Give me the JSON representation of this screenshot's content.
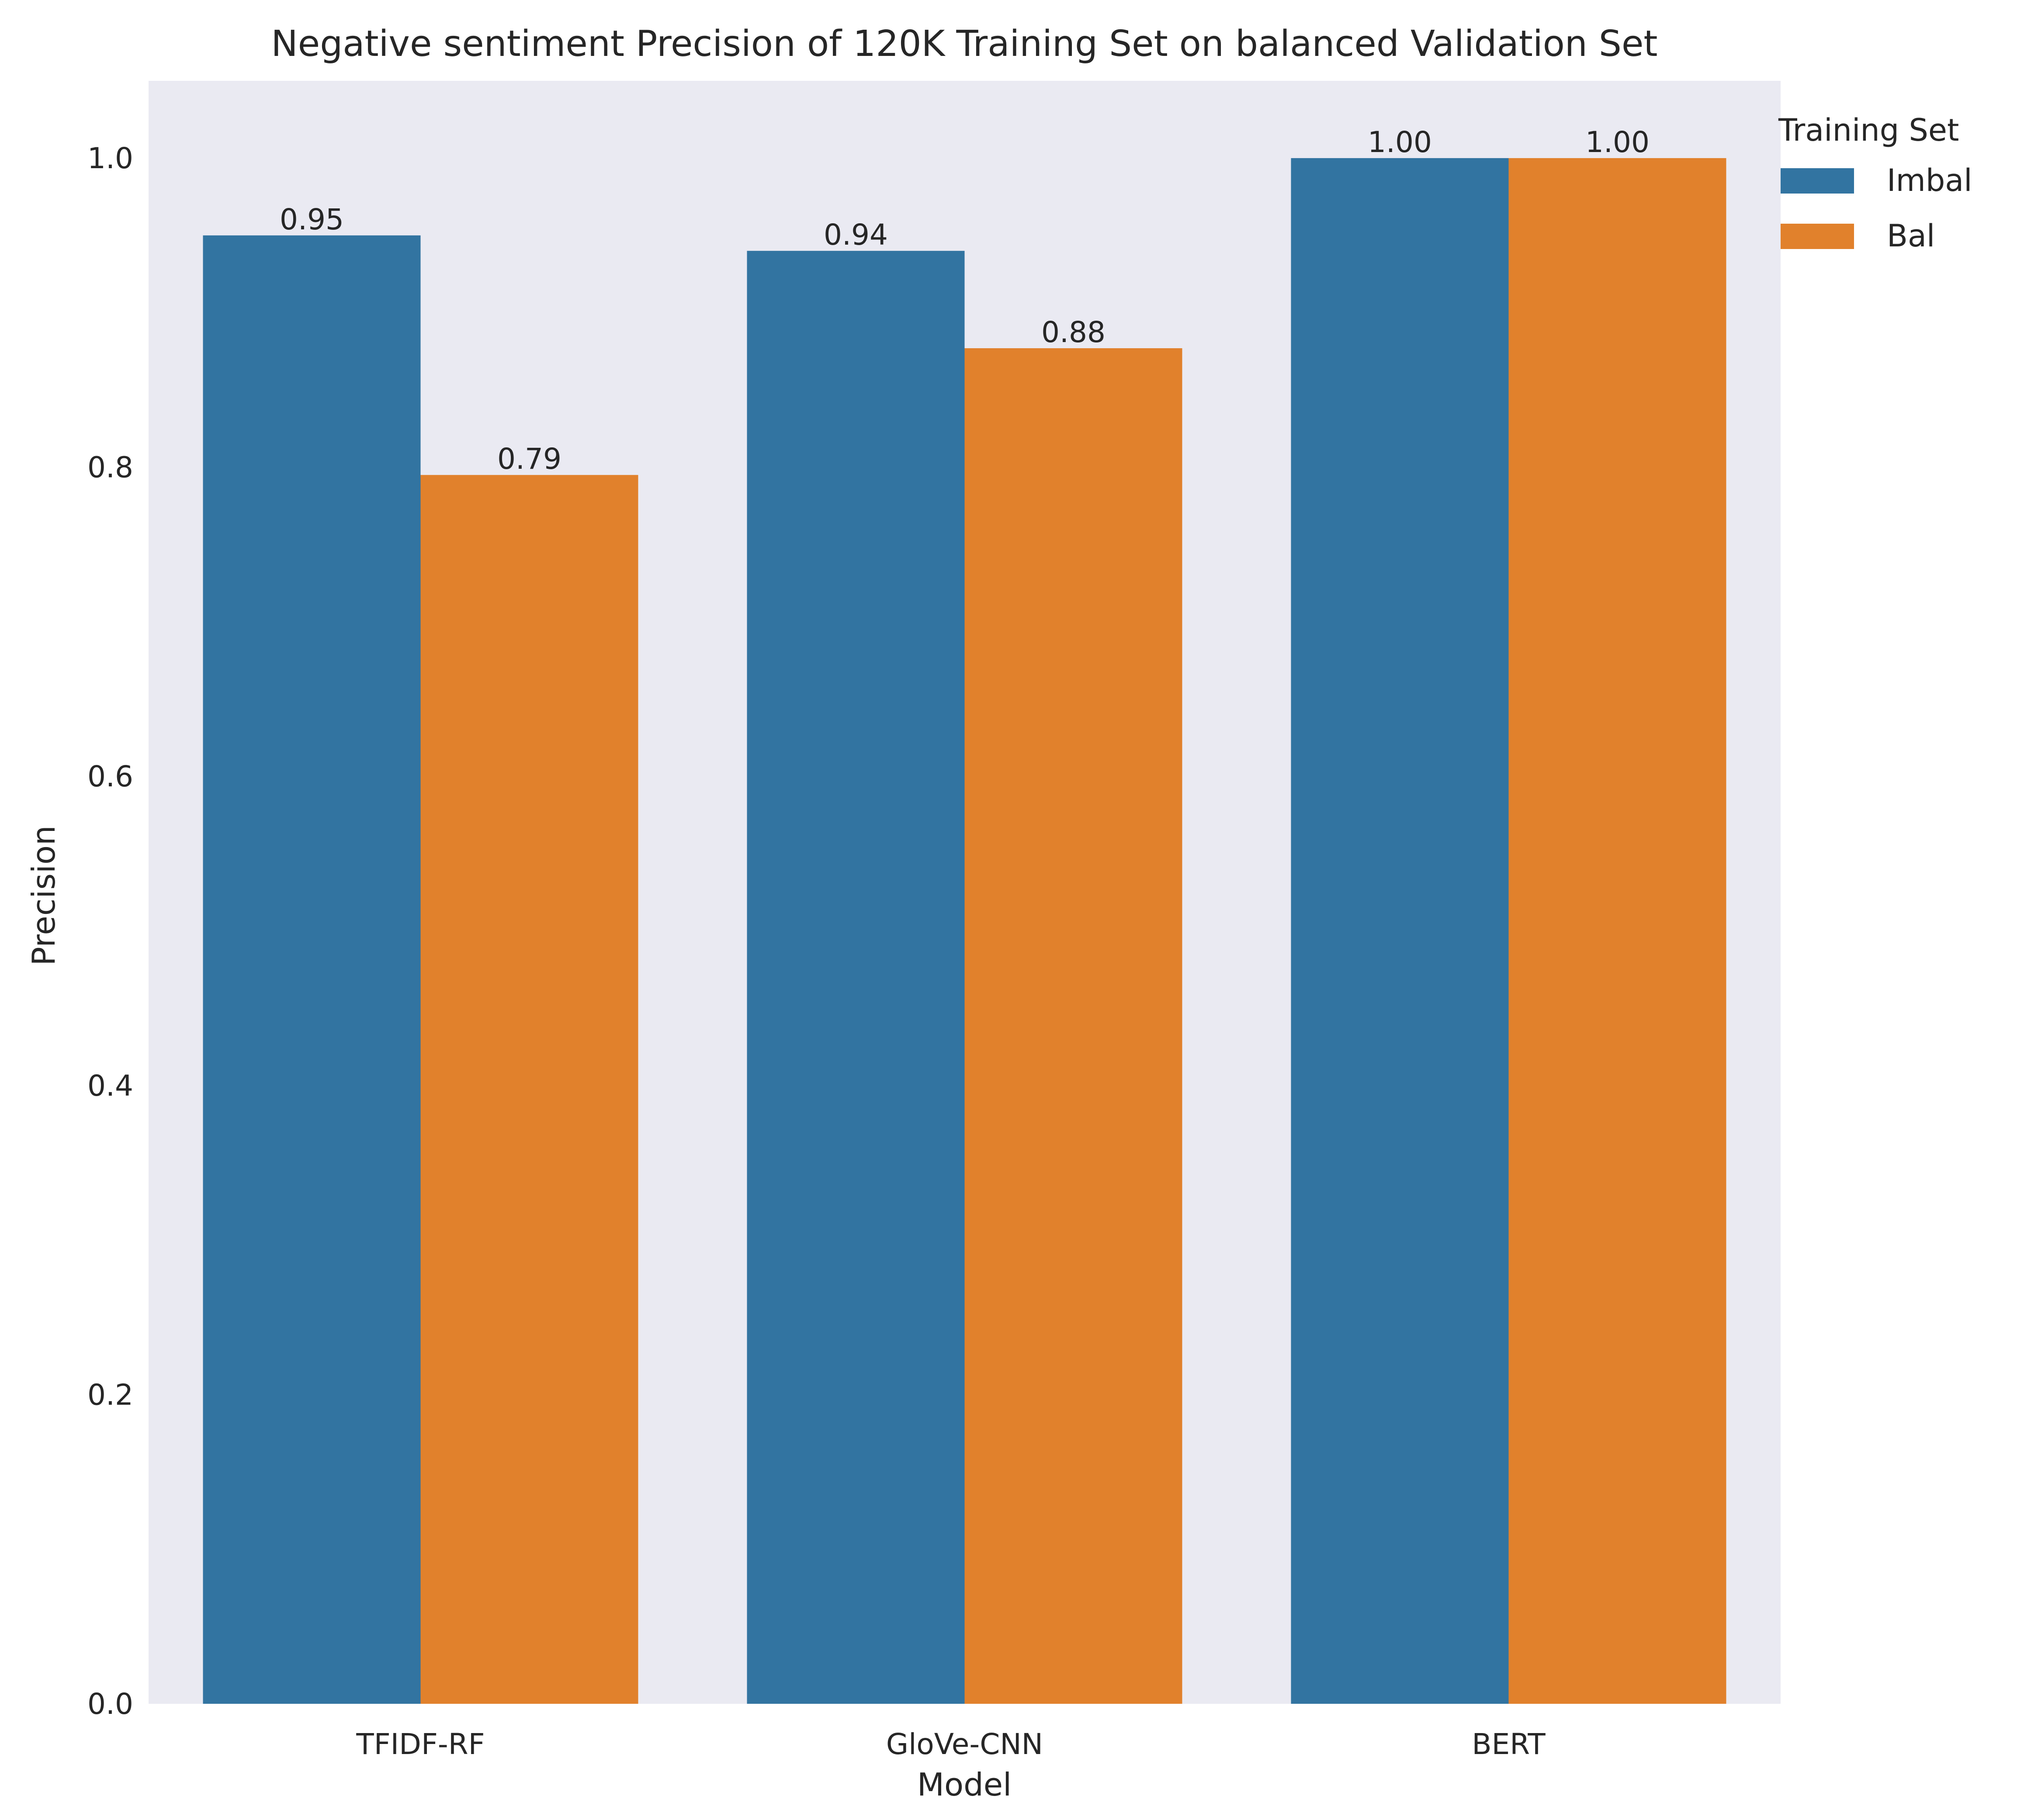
{
  "chart_data": {
    "type": "bar",
    "title": "Negative sentiment Precision of 120K Training Set on balanced Validation Set",
    "xlabel": "Model",
    "ylabel": "Precision",
    "categories": [
      "TFIDF-RF",
      "GloVe-CNN",
      "BERT"
    ],
    "series": [
      {
        "name": "Imbal",
        "values": [
          0.95,
          0.94,
          1.0
        ],
        "labels": [
          "0.95",
          "0.94",
          "1.00"
        ],
        "color": "#3274a1"
      },
      {
        "name": "Bal",
        "values": [
          0.795,
          0.877,
          1.0
        ],
        "labels": [
          "0.79",
          "0.88",
          "1.00"
        ],
        "color": "#e1812c"
      }
    ],
    "ylim": [
      0,
      1.05
    ],
    "yticks": [
      "0.0",
      "0.2",
      "0.4",
      "0.6",
      "0.8",
      "1.0"
    ],
    "grid": false,
    "legend": {
      "title": "Training Set",
      "placement": "outside-top-right"
    },
    "background": "#eaeaf2"
  }
}
